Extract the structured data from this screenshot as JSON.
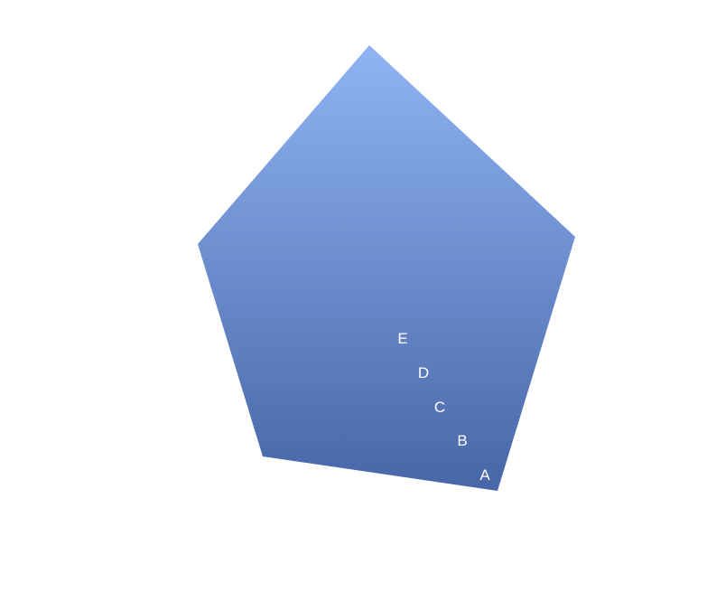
{
  "diagram": {
    "colors": {
      "gradient_top": "#8fb3f3",
      "gradient_bottom": "#4766a8",
      "label": "#ffffff",
      "background": "#ffffff"
    },
    "labels": [
      "A",
      "B",
      "C",
      "D",
      "E"
    ]
  }
}
